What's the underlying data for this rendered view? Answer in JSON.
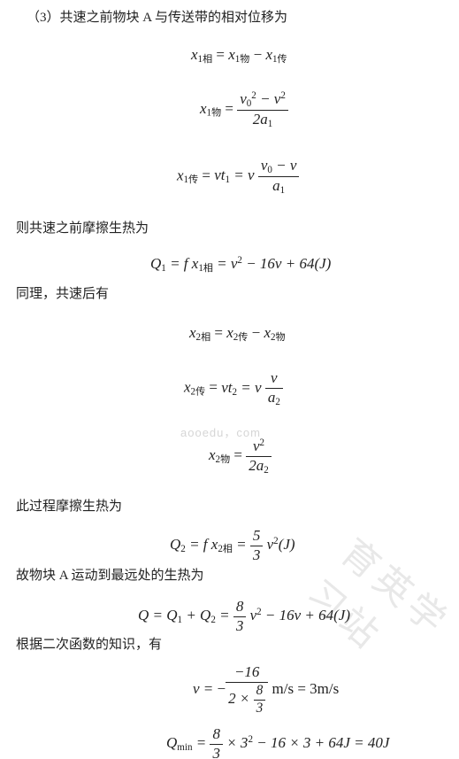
{
  "watermark": {
    "text": "育英学习站",
    "small": "aooedu，com"
  },
  "para": {
    "p1": "（3）共速之前物块 A 与传送带的相对位移为",
    "p2": "则共速之前摩擦生热为",
    "p3": "同理，共速后有",
    "p4": "此过程摩擦生热为",
    "p5": "故物块 A 运动到最远处的生热为",
    "p6": "根据二次函数的知识，有"
  },
  "eq": {
    "x1rel": {
      "lhs_base": "x",
      "lhs_sub": "1相",
      "eq": "=",
      "t1_base": "x",
      "t1_sub": "1物",
      "minus": " − ",
      "t2_base": "x",
      "t2_sub": "1传"
    },
    "x1wu": {
      "lhs_base": "x",
      "lhs_sub": "1物",
      "eq": "=",
      "num": "v<sub>0</sub><sup>2</sup> − v<sup>2</sup>",
      "den": "2a<sub>1</sub>"
    },
    "x1chuan": {
      "lhs_base": "x",
      "lhs_sub": "1传",
      "eq": "=",
      "mid": "vt<sub>1</sub> = v",
      "num": "v<sub>0</sub> − v",
      "den": "a<sub>1</sub>"
    },
    "Q1": {
      "text": "Q<sub>1</sub> = f x<sub>1相</sub> = v<sup>2</sup> − 16v + 64(J)"
    },
    "x2rel": {
      "lhs_base": "x",
      "lhs_sub": "2相",
      "eq": "=",
      "t1_base": "x",
      "t1_sub": "2传",
      "minus": " − ",
      "t2_base": "x",
      "t2_sub": "2物"
    },
    "x2chuan": {
      "lhs_base": "x",
      "lhs_sub": "2传",
      "eq": "=",
      "mid": "vt<sub>2</sub> = v",
      "num": "v",
      "den": "a<sub>2</sub>"
    },
    "x2wu": {
      "lhs_base": "x",
      "lhs_sub": "2物",
      "eq": "=",
      "num": "v<sup>2</sup>",
      "den": "2a<sub>2</sub>"
    },
    "Q2": {
      "pre": "Q<sub>2</sub> = f x<sub>2相</sub> = ",
      "num": "5",
      "den": "3",
      "post": " v<sup>2</sup>(J)"
    },
    "Qtot": {
      "pre": "Q = Q<sub>1</sub> + Q<sub>2</sub> = ",
      "num": "8",
      "den": "3",
      "post": " v<sup>2</sup> − 16v + 64(J)"
    },
    "vsol": {
      "pre": "v = ",
      "num": "−16",
      "den_pre": "2 × ",
      "den_num": "8",
      "den_den": "3",
      "post": " m/s = 3m/s"
    },
    "Qmin": {
      "pre": "Q<sub>min</sub> = ",
      "num": "8",
      "den": "3",
      "post": " × 3<sup>2</sup> − 16 × 3 + 64J = 40J"
    }
  }
}
